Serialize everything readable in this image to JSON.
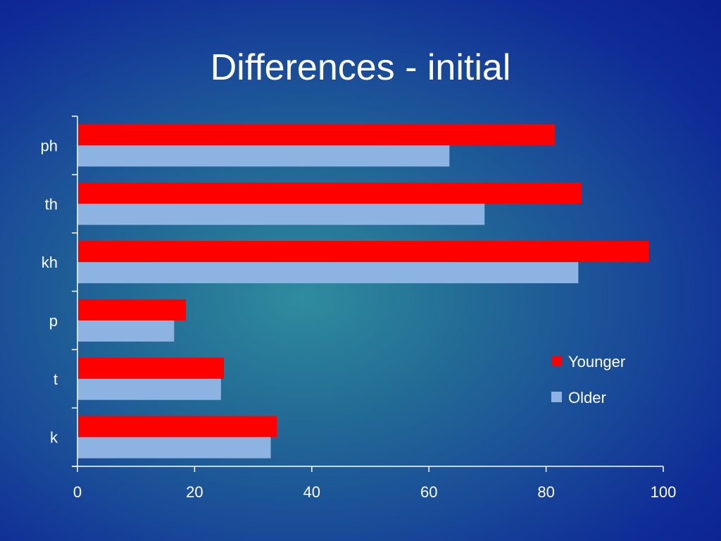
{
  "slide": {
    "title": "Differences - initial"
  },
  "colors": {
    "younger": "#ff0000",
    "older": "#8db3e2",
    "axis": "#ffffff"
  },
  "chart_data": {
    "type": "bar",
    "orientation": "horizontal",
    "title": "Differences - initial",
    "categories": [
      "ph",
      "th",
      "kh",
      "p",
      "t",
      "k"
    ],
    "series": [
      {
        "name": "Younger",
        "values": [
          81.5,
          86,
          97.5,
          18.5,
          25,
          34
        ]
      },
      {
        "name": "Older",
        "values": [
          63.5,
          69.5,
          85.5,
          16.5,
          24.5,
          33
        ]
      }
    ],
    "xlim": [
      0,
      100
    ],
    "xticks": [
      0,
      20,
      40,
      60,
      80,
      100
    ],
    "xlabel": "",
    "ylabel": "",
    "grid": false,
    "legend": "right"
  }
}
